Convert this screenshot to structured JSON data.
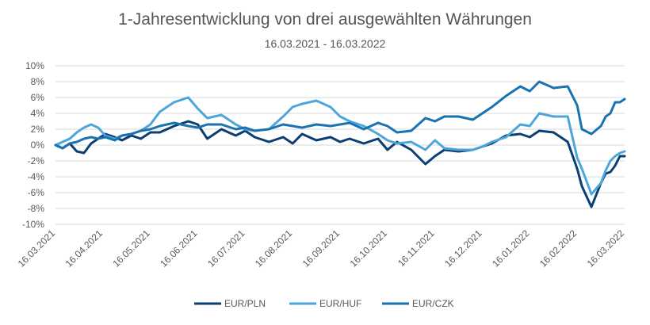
{
  "chart_data": {
    "type": "line",
    "title": "1-Jahresentwicklung von drei ausgewählten Währungen",
    "subtitle": "16.03.2021 - 16.03.2022",
    "xlabel": "",
    "ylabel": "",
    "x_ticks": [
      "16.03.2021",
      "16.04.2021",
      "16.05.2021",
      "16.06.2021",
      "16.07.2021",
      "16.08.2021",
      "16.09.2021",
      "16.10.2021",
      "16.11.2021",
      "16.12.2021",
      "16.01.2022",
      "16.02.2022",
      "16.03.2022"
    ],
    "y_ticks": [
      "10%",
      "8%",
      "6%",
      "4%",
      "2%",
      "0%",
      "-2%",
      "-4%",
      "-6%",
      "-8%",
      "-10%"
    ],
    "ylim": [
      -10,
      10
    ],
    "grid": "horizontal",
    "legend_position": "bottom",
    "series": [
      {
        "name": "EUR/PLN",
        "color": "#0b3f73",
        "x": [
          0,
          0.15,
          0.3,
          0.45,
          0.6,
          0.75,
          0.9,
          1.05,
          1.25,
          1.4,
          1.6,
          1.8,
          2.0,
          2.2,
          2.5,
          2.8,
          3.0,
          3.2,
          3.5,
          3.8,
          4.0,
          4.2,
          4.5,
          4.8,
          5.0,
          5.2,
          5.5,
          5.8,
          6.0,
          6.2,
          6.5,
          6.8,
          7.0,
          7.2,
          7.5,
          7.8,
          8.0,
          8.2,
          8.5,
          8.8,
          9.0,
          9.2,
          9.5,
          9.8,
          10.0,
          10.2,
          10.5,
          10.8,
          11.0,
          11.1,
          11.3,
          11.5,
          11.6,
          11.7,
          11.8,
          11.9,
          12.0
        ],
        "values": [
          0,
          -0.4,
          0.2,
          -0.8,
          -1.0,
          0.2,
          0.8,
          1.4,
          1.0,
          0.6,
          1.2,
          0.8,
          1.6,
          1.6,
          2.4,
          3.0,
          2.6,
          0.8,
          2.0,
          1.2,
          1.8,
          1.0,
          0.4,
          1.0,
          0.2,
          1.4,
          0.6,
          1.0,
          0.4,
          0.8,
          0.2,
          0.8,
          -0.6,
          0.4,
          -0.6,
          -2.4,
          -1.4,
          -0.6,
          -0.8,
          -0.6,
          -0.2,
          0.2,
          1.2,
          1.4,
          1.0,
          1.8,
          1.6,
          0.4,
          -3.0,
          -5.2,
          -7.8,
          -4.8,
          -3.6,
          -3.4,
          -2.6,
          -1.4,
          -1.4
        ]
      },
      {
        "name": "EUR/HUF",
        "color": "#4da6d9",
        "x": [
          0,
          0.15,
          0.3,
          0.45,
          0.6,
          0.75,
          0.9,
          1.05,
          1.25,
          1.4,
          1.6,
          1.8,
          2.0,
          2.2,
          2.5,
          2.8,
          3.0,
          3.2,
          3.5,
          3.8,
          4.0,
          4.2,
          4.5,
          4.8,
          5.0,
          5.2,
          5.5,
          5.8,
          6.0,
          6.2,
          6.5,
          6.8,
          7.0,
          7.2,
          7.5,
          7.8,
          8.0,
          8.2,
          8.5,
          8.8,
          9.0,
          9.2,
          9.5,
          9.8,
          10.0,
          10.2,
          10.5,
          10.8,
          11.0,
          11.1,
          11.3,
          11.5,
          11.6,
          11.7,
          11.8,
          11.9,
          12.0
        ],
        "values": [
          0,
          0.4,
          0.8,
          1.6,
          2.2,
          2.6,
          2.2,
          1.2,
          0.8,
          1.2,
          1.4,
          1.8,
          2.6,
          4.2,
          5.4,
          6.0,
          4.6,
          3.4,
          3.8,
          2.6,
          2.0,
          1.8,
          2.0,
          3.6,
          4.8,
          5.2,
          5.6,
          4.8,
          3.6,
          3.0,
          2.4,
          1.4,
          0.6,
          0.2,
          0.4,
          -0.6,
          0.6,
          -0.4,
          -0.6,
          -0.6,
          -0.2,
          0.4,
          1.0,
          2.6,
          2.4,
          4.0,
          3.6,
          3.6,
          -1.6,
          -3.0,
          -6.2,
          -4.8,
          -3.2,
          -2.0,
          -1.4,
          -1.0,
          -0.8
        ]
      },
      {
        "name": "EUR/CZK",
        "color": "#1a72b0",
        "x": [
          0,
          0.15,
          0.3,
          0.45,
          0.6,
          0.75,
          0.9,
          1.05,
          1.25,
          1.4,
          1.6,
          1.8,
          2.0,
          2.2,
          2.5,
          2.8,
          3.0,
          3.2,
          3.5,
          3.8,
          4.0,
          4.2,
          4.5,
          4.8,
          5.0,
          5.2,
          5.5,
          5.8,
          6.0,
          6.2,
          6.5,
          6.8,
          7.0,
          7.2,
          7.5,
          7.8,
          8.0,
          8.2,
          8.5,
          8.8,
          9.0,
          9.2,
          9.5,
          9.8,
          10.0,
          10.2,
          10.5,
          10.8,
          11.0,
          11.1,
          11.3,
          11.5,
          11.6,
          11.7,
          11.8,
          11.9,
          12.0
        ],
        "values": [
          0,
          -0.4,
          0.2,
          0.4,
          0.8,
          1.0,
          0.8,
          1.0,
          0.6,
          1.2,
          1.4,
          1.8,
          2.0,
          2.4,
          2.8,
          2.4,
          2.2,
          2.6,
          2.6,
          2.0,
          2.2,
          1.8,
          2.0,
          2.6,
          2.4,
          2.2,
          2.6,
          2.4,
          2.6,
          2.8,
          2.0,
          2.8,
          2.4,
          1.6,
          1.8,
          3.4,
          3.0,
          3.6,
          3.6,
          3.2,
          4.0,
          4.8,
          6.2,
          7.4,
          6.8,
          8.0,
          7.2,
          7.4,
          5.0,
          2.0,
          1.4,
          2.4,
          3.6,
          4.0,
          5.4,
          5.4,
          5.8
        ]
      }
    ]
  }
}
